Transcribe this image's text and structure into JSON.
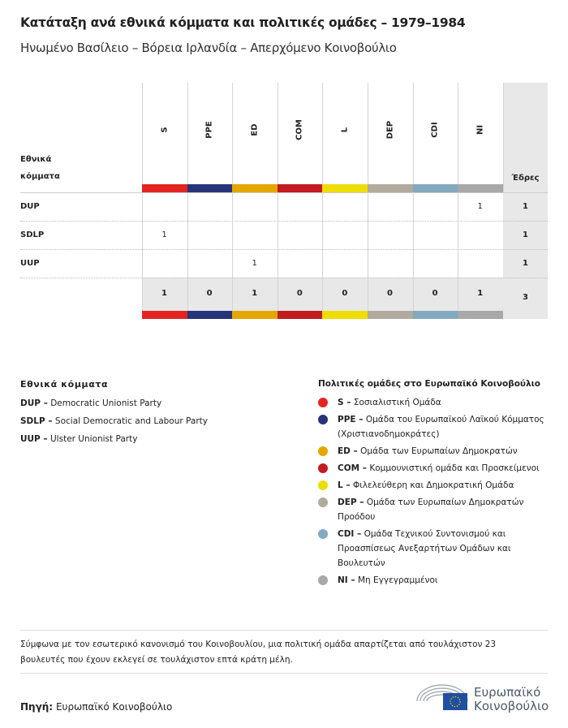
{
  "title": "Κατάταξη ανά εθνικά κόμματα και πολιτικές ομάδες – 1979–1984",
  "subtitle": "Ηνωμένο Βασίλειο – Βόρεια Ιρλανδία – Απερχόμενο Κοινοβούλιο",
  "table": {
    "row_header": "Εθνικά κόμματα",
    "seats_header": "Έδρες",
    "groups": [
      {
        "code": "S",
        "color": "#e32521"
      },
      {
        "code": "PPE",
        "color": "#26357a"
      },
      {
        "code": "ED",
        "color": "#e6a600"
      },
      {
        "code": "COM",
        "color": "#c21b1f"
      },
      {
        "code": "L",
        "color": "#eedd00"
      },
      {
        "code": "DEP",
        "color": "#b2aa9d"
      },
      {
        "code": "CDI",
        "color": "#82a9bf"
      },
      {
        "code": "NI",
        "color": "#a8a8a8"
      }
    ],
    "rows": [
      {
        "party": "DUP",
        "values": [
          "",
          "",
          "",
          "",
          "",
          "",
          "",
          "1"
        ],
        "seats": "1"
      },
      {
        "party": "SDLP",
        "values": [
          "1",
          "",
          "",
          "",
          "",
          "",
          "",
          ""
        ],
        "seats": "1"
      },
      {
        "party": "UUP",
        "values": [
          "",
          "",
          "1",
          "",
          "",
          "",
          "",
          ""
        ],
        "seats": "1"
      }
    ],
    "totals": [
      "1",
      "0",
      "1",
      "0",
      "0",
      "0",
      "0",
      "1"
    ],
    "total_seats": "3"
  },
  "national_parties": {
    "heading": "Εθνικά κόμματα",
    "items": [
      {
        "code": "DUP –",
        "name": "Democratic Unionist Party"
      },
      {
        "code": "SDLP –",
        "name": "Social Democratic and Labour Party"
      },
      {
        "code": "UUP –",
        "name": "Ulster Unionist Party"
      }
    ]
  },
  "groups_legend": {
    "heading": "Πολιτικές ομάδες στο Ευρωπαϊκό Κοινοβούλιο",
    "items": [
      {
        "code": "S –",
        "name": "Σοσιαλιστική Ομάδα"
      },
      {
        "code": "PPE –",
        "name": "Ομάδα του Ευρωπαϊκού Λαϊκού Κόμματος (Χριστιανοδημοκράτες)"
      },
      {
        "code": "ED –",
        "name": "Ομάδα των Ευρωπαίων Δημοκρατών"
      },
      {
        "code": "COM –",
        "name": "Κομμουνιστική ομάδα και Προσκείμενοι"
      },
      {
        "code": "L –",
        "name": "Φιλελεύθερη και Δημοκρατική Ομάδα"
      },
      {
        "code": "DEP –",
        "name": "Ομάδα των Ευρωπαίων Δημοκρατών Προόδου"
      },
      {
        "code": "CDI –",
        "name": "Ομάδα Τεχνικού Συντονισμού και Προασπίσεως Ανεξαρτήτων Ομάδων και Βουλευτών"
      },
      {
        "code": "NI –",
        "name": "Μη Εγγεγραμμένοι"
      }
    ]
  },
  "note": "Σύμφωνα με τον εσωτερικό κανονισμό του Κοινοβουλίου, μια πολιτική ομάδα απαρτίζεται από τουλάχιστον 23 βουλευτές που έχουν εκλεγεί σε τουλάχιστον επτά κράτη μέλη.",
  "source": {
    "label": "Πηγή:",
    "value": "Ευρωπαϊκό Κοινοβούλιο"
  },
  "logo": {
    "line1": "Ευρωπαϊκό",
    "line2": "Κοινοβούλιο"
  }
}
